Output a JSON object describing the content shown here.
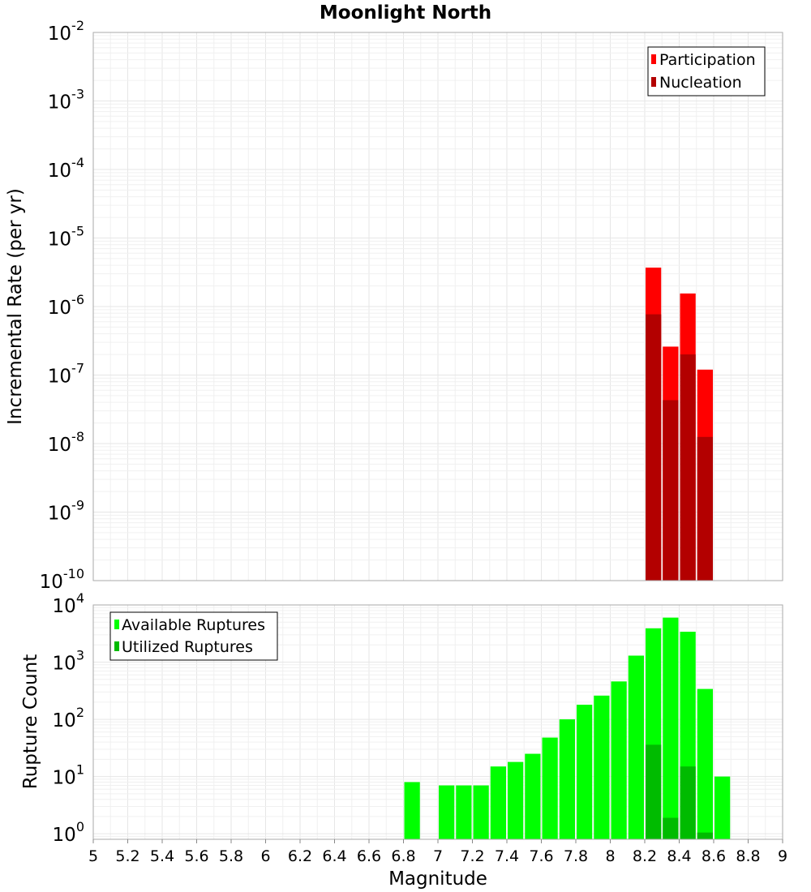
{
  "chart_title": "Moonlight North",
  "chart_data": [
    {
      "type": "bar",
      "title": "Moonlight North",
      "xlabel": "",
      "ylabel": "Incremental Rate (per yr)",
      "yscale": "log",
      "ylim": [
        1e-10,
        0.01
      ],
      "xlim": [
        5,
        9
      ],
      "y_tick_labels": [
        {
          "base": "10",
          "exp": "-10"
        },
        {
          "base": "10",
          "exp": "-9"
        },
        {
          "base": "10",
          "exp": "-8"
        },
        {
          "base": "10",
          "exp": "-7"
        },
        {
          "base": "10",
          "exp": "-6"
        },
        {
          "base": "10",
          "exp": "-5"
        },
        {
          "base": "10",
          "exp": "-4"
        },
        {
          "base": "10",
          "exp": "-3"
        },
        {
          "base": "10",
          "exp": "-2"
        }
      ],
      "grid": true,
      "legend_position": "top-right",
      "series": [
        {
          "name": "Participation",
          "color": "#ff0000",
          "x": [
            8.25,
            8.35,
            8.45,
            8.55
          ],
          "values": [
            3.7e-06,
            2.6e-07,
            1.55e-06,
            1.2e-07
          ]
        },
        {
          "name": "Nucleation",
          "color": "#b30000",
          "x": [
            8.25,
            8.35,
            8.45,
            8.55
          ],
          "values": [
            7.7e-07,
            4.3e-08,
            2e-07,
            1.25e-08
          ]
        }
      ]
    },
    {
      "type": "bar",
      "title": "",
      "xlabel": "Magnitude",
      "ylabel": "Rupture Count",
      "yscale": "log",
      "ylim": [
        0.8,
        10000.0
      ],
      "xlim": [
        5,
        9
      ],
      "y_tick_labels": [
        {
          "base": "10",
          "exp": "0"
        },
        {
          "base": "10",
          "exp": "1"
        },
        {
          "base": "10",
          "exp": "2"
        },
        {
          "base": "10",
          "exp": "3"
        },
        {
          "base": "10",
          "exp": "4"
        }
      ],
      "x_tick_labels": [
        "5",
        "5.2",
        "5.4",
        "5.6",
        "5.8",
        "6",
        "6.2",
        "6.4",
        "6.6",
        "6.8",
        "7",
        "7.2",
        "7.4",
        "7.6",
        "7.8",
        "8",
        "8.2",
        "8.4",
        "8.6",
        "8.8",
        "9"
      ],
      "grid": true,
      "legend_position": "top-left",
      "series": [
        {
          "name": "Available Ruptures",
          "color": "#00ff00",
          "x": [
            6.85,
            7.05,
            7.15,
            7.25,
            7.35,
            7.45,
            7.55,
            7.65,
            7.75,
            7.85,
            7.95,
            8.05,
            8.15,
            8.25,
            8.35,
            8.45,
            8.55,
            8.65
          ],
          "values": [
            8,
            7,
            7,
            7,
            15,
            18,
            25,
            48,
            100,
            180,
            260,
            460,
            1300,
            3900,
            6000,
            3400,
            340,
            10
          ]
        },
        {
          "name": "Utilized Ruptures",
          "color": "#00bb00",
          "x": [
            8.25,
            8.35,
            8.45,
            8.55
          ],
          "values": [
            36,
            1.9,
            15,
            1.05
          ]
        }
      ]
    }
  ]
}
